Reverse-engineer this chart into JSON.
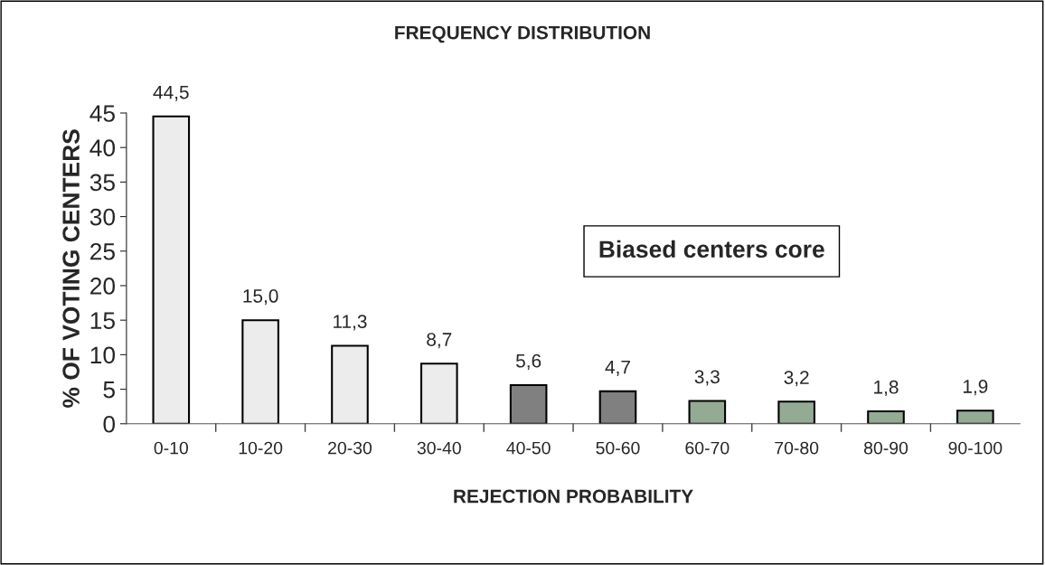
{
  "chart_data": {
    "type": "bar",
    "title": "FREQUENCY DISTRIBUTION",
    "xlabel": "REJECTION PROBABILITY",
    "ylabel": "% OF VOTING CENTERS",
    "categories": [
      "0-10",
      "10-20",
      "20-30",
      "30-40",
      "40-50",
      "50-60",
      "60-70",
      "70-80",
      "80-90",
      "90-100"
    ],
    "values": [
      44.5,
      15.0,
      11.3,
      8.7,
      5.6,
      4.7,
      3.3,
      3.2,
      1.8,
      1.9
    ],
    "value_labels": [
      "44,5",
      "15,0",
      "11,3",
      "8,7",
      "5,6",
      "4,7",
      "3,3",
      "3,2",
      "1,8",
      "1,9"
    ],
    "colors": [
      "#ececec",
      "#ececec",
      "#ececec",
      "#ececec",
      "#808080",
      "#808080",
      "#8fae8f",
      "#8fae8f",
      "#8fae8f",
      "#8fae8f"
    ],
    "ylim": [
      0,
      45
    ],
    "yticks": [
      0,
      5,
      10,
      15,
      20,
      25,
      30,
      35,
      40,
      45
    ],
    "grid": false,
    "legend": false,
    "annotations": [
      "Biased centers core"
    ]
  }
}
